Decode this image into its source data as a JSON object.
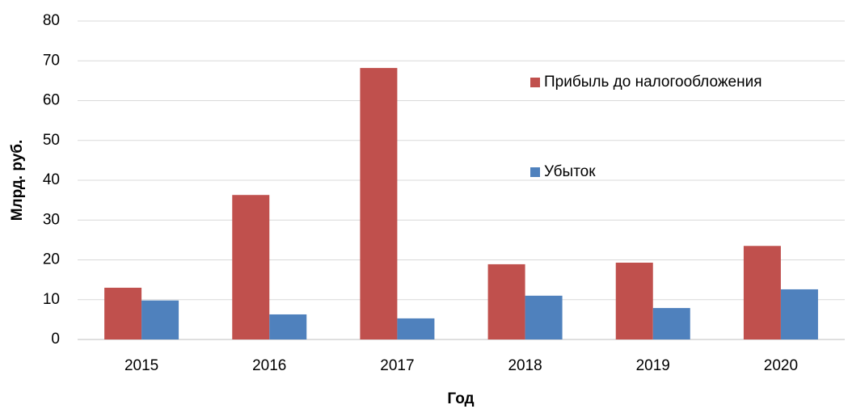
{
  "chart_data": {
    "type": "bar",
    "categories": [
      "2015",
      "2016",
      "2017",
      "2018",
      "2019",
      "2020"
    ],
    "series": [
      {
        "name": "Прибыль до налогообложения",
        "color": "#c0504d",
        "values": [
          13.0,
          36.3,
          68.2,
          18.9,
          19.3,
          23.5
        ]
      },
      {
        "name": "Убыток",
        "color": "#4f81bd",
        "values": [
          9.8,
          6.3,
          5.3,
          11.0,
          7.9,
          12.6
        ]
      }
    ],
    "y_label": "Млрд. руб.",
    "x_label": "Год",
    "ylim": [
      0,
      80
    ],
    "yticks": [
      0,
      10,
      20,
      30,
      40,
      50,
      60,
      70,
      80
    ],
    "grid": true,
    "legend": "upper right"
  }
}
